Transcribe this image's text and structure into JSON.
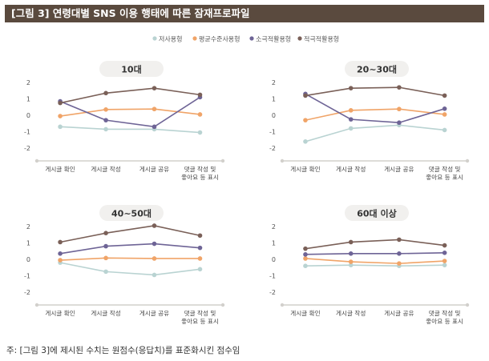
{
  "figure_title": "[그림 3]  연령대별 SNS 이용 행태에 따른 잠재프로파일",
  "footnote": "주: [그림 3]에 제시된 수치는 원점수(응답치)를 표준화시킨 점수임",
  "colors": {
    "저사용형": "#b9d3d2",
    "평균수준사용형": "#f0a468",
    "소극적활용형": "#6e6496",
    "적극적활용형": "#7a6058",
    "panel_title_bg": "#f1f0ee",
    "axis": "#d2d0cc",
    "header": "#5a4a3e"
  },
  "chart_data": [
    {
      "type": "line",
      "title": "10대",
      "categories": [
        "게시글 확인",
        "게시글 작성",
        "게시글 공유",
        "댓글 작성 및 좋아요 등 표시"
      ],
      "ylim": [
        -2,
        2
      ],
      "yticks": [
        "2",
        "1",
        "0",
        "-1",
        "-2"
      ],
      "series": [
        {
          "name": "저사용형",
          "values": [
            -0.7,
            -0.85,
            -0.85,
            -1.05
          ]
        },
        {
          "name": "평균수준사용형",
          "values": [
            -0.05,
            0.35,
            0.38,
            0.05
          ]
        },
        {
          "name": "소극적활용형",
          "values": [
            0.85,
            -0.3,
            -0.7,
            1.1
          ]
        },
        {
          "name": "적극적활용형",
          "values": [
            0.75,
            1.35,
            1.65,
            1.25
          ]
        }
      ]
    },
    {
      "type": "line",
      "title": "20~30대",
      "categories": [
        "게시글 확인",
        "게시글 작성",
        "게시글 공유",
        "댓글 작성 및 좋아요 등 표시"
      ],
      "ylim": [
        -2,
        2
      ],
      "yticks": [
        "2",
        "1",
        "0",
        "-1",
        "-2"
      ],
      "series": [
        {
          "name": "저사용형",
          "values": [
            -1.6,
            -0.8,
            -0.6,
            -0.9
          ]
        },
        {
          "name": "평균수준사용형",
          "values": [
            -0.3,
            0.3,
            0.38,
            0.05
          ]
        },
        {
          "name": "소극적활용형",
          "values": [
            1.3,
            -0.25,
            -0.45,
            0.4
          ]
        },
        {
          "name": "적극적활용형",
          "values": [
            1.2,
            1.65,
            1.7,
            1.2
          ]
        }
      ]
    },
    {
      "type": "line",
      "title": "40~50대",
      "categories": [
        "게시글 확인",
        "게시글 작성",
        "게시글 공유",
        "댓글 작성 및 좋아요 등 표시"
      ],
      "ylim": [
        -2,
        2
      ],
      "yticks": [
        "2",
        "1",
        "0",
        "-1",
        "-2"
      ],
      "series": [
        {
          "name": "저사용형",
          "values": [
            -0.2,
            -0.75,
            -0.95,
            -0.6
          ]
        },
        {
          "name": "평균수준사용형",
          "values": [
            -0.05,
            0.08,
            0.05,
            0.05
          ]
        },
        {
          "name": "소극적활용형",
          "values": [
            0.35,
            0.8,
            0.95,
            0.7
          ]
        },
        {
          "name": "적극적활용형",
          "values": [
            1.05,
            1.6,
            2.05,
            1.45
          ]
        }
      ]
    },
    {
      "type": "line",
      "title": "60대 이상",
      "categories": [
        "게시글 확인",
        "게시글 작성",
        "게시글 공유",
        "댓글 작성 및 좋아요 등 표시"
      ],
      "ylim": [
        -2,
        2
      ],
      "yticks": [
        "2",
        "1",
        "0",
        "-1",
        "-2"
      ],
      "series": [
        {
          "name": "저사용형",
          "values": [
            -0.4,
            -0.35,
            -0.4,
            -0.35
          ]
        },
        {
          "name": "평균수준사용형",
          "values": [
            0.05,
            -0.15,
            -0.25,
            -0.1
          ]
        },
        {
          "name": "소극적활용형",
          "values": [
            0.3,
            0.35,
            0.35,
            0.4
          ]
        },
        {
          "name": "적극적활용형",
          "values": [
            0.65,
            1.05,
            1.2,
            0.85
          ]
        }
      ]
    }
  ]
}
